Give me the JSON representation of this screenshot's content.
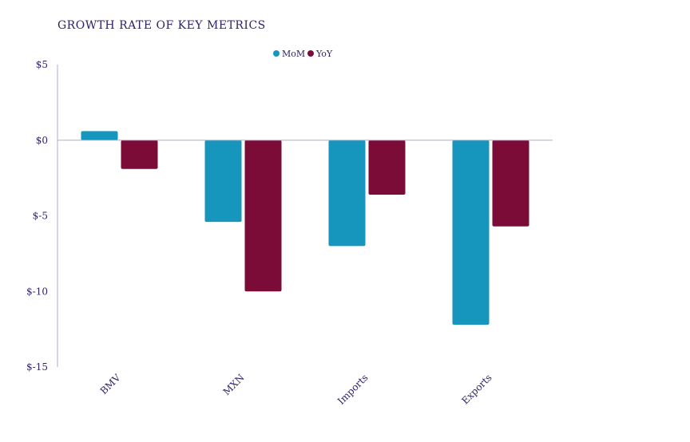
{
  "chart_data": {
    "type": "bar",
    "title": "GROWTH RATE OF KEY METRICS",
    "categories": [
      "BMV",
      "MXN",
      "Imports",
      "Exports"
    ],
    "series": [
      {
        "name": "MoM",
        "color": "#1695bd",
        "values": [
          0.6,
          -5.4,
          -7.0,
          -12.2
        ]
      },
      {
        "name": "YoY",
        "color": "#7a0c37",
        "values": [
          -1.9,
          -10.0,
          -3.6,
          -5.7
        ]
      }
    ],
    "ylim": [
      -15,
      5
    ],
    "yticks": [
      5,
      0,
      -5,
      -10,
      -15
    ],
    "ytick_labels": [
      "$5",
      "$0",
      "$-5",
      "$-10",
      "$-15"
    ],
    "xlabel": "",
    "ylabel": "",
    "legend_position": "top-center",
    "grid": false
  },
  "colors": {
    "axis": "#b3a9d6",
    "text": "#2b2368"
  }
}
